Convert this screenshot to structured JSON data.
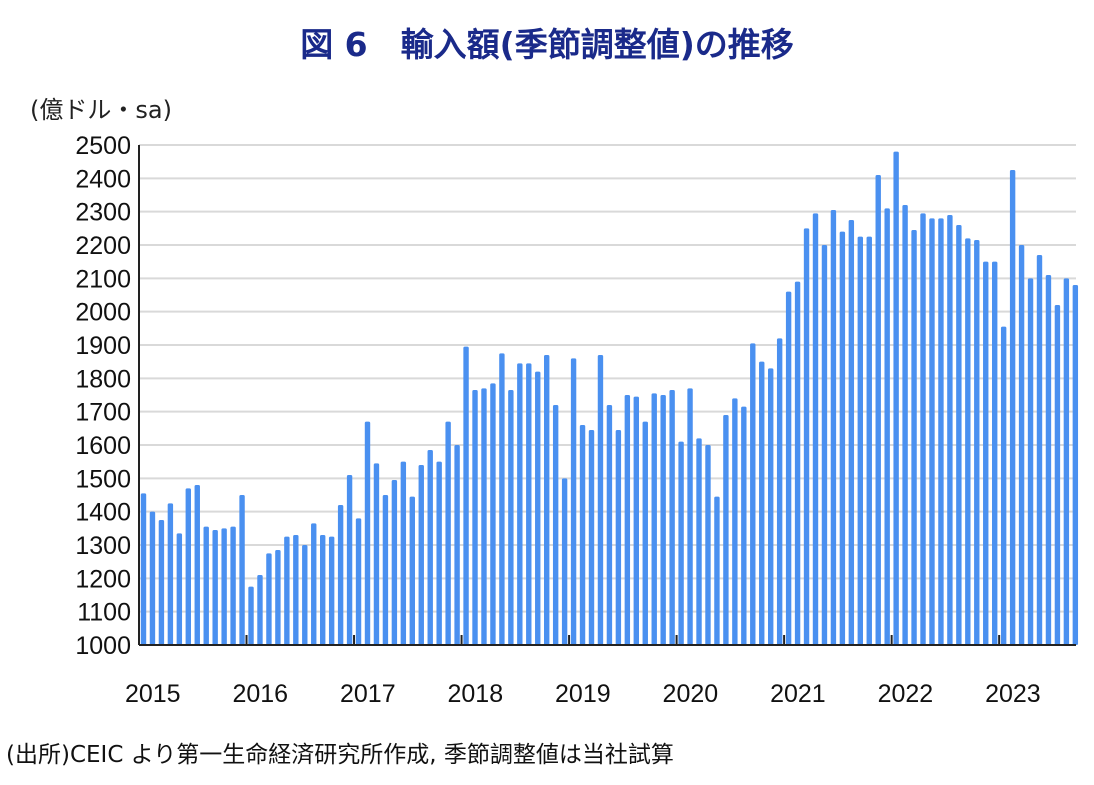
{
  "chart_data": {
    "type": "bar",
    "title": "図 6　輸入額(季節調整値)の推移",
    "ylabel": "(億ドル・sa)",
    "xlabel": "",
    "ylim": [
      1000,
      2500
    ],
    "yticks": [
      1000,
      1100,
      1200,
      1300,
      1400,
      1500,
      1600,
      1700,
      1800,
      1900,
      2000,
      2100,
      2200,
      2300,
      2400,
      2500
    ],
    "x_tick_labels": [
      "2015",
      "2016",
      "2017",
      "2018",
      "2019",
      "2020",
      "2021",
      "2022",
      "2023"
    ],
    "x_start": "2015-01",
    "frequency": "monthly",
    "grid": true,
    "bar_color": "#4a90f0",
    "values": [
      1455,
      1400,
      1375,
      1425,
      1335,
      1470,
      1480,
      1355,
      1345,
      1350,
      1355,
      1450,
      1175,
      1210,
      1275,
      1285,
      1325,
      1330,
      1300,
      1365,
      1330,
      1325,
      1420,
      1510,
      1380,
      1670,
      1545,
      1450,
      1495,
      1550,
      1445,
      1540,
      1585,
      1550,
      1670,
      1600,
      1895,
      1765,
      1770,
      1785,
      1875,
      1765,
      1845,
      1845,
      1820,
      1870,
      1720,
      1500,
      1860,
      1660,
      1645,
      1870,
      1720,
      1645,
      1750,
      1745,
      1670,
      1755,
      1750,
      1765,
      1610,
      1770,
      1620,
      1600,
      1445,
      1690,
      1740,
      1715,
      1905,
      1850,
      1830,
      1920,
      2060,
      2090,
      2250,
      2295,
      2200,
      2305,
      2240,
      2275,
      2225,
      2225,
      2410,
      2310,
      2480,
      2320,
      2245,
      2295,
      2280,
      2280,
      2290,
      2260,
      2220,
      2215,
      2150,
      2150,
      1955,
      2425,
      2200,
      2100,
      2170,
      2110,
      2020,
      2100,
      2080
    ],
    "source": "(出所)CEIC より第一生命経済研究所作成, 季節調整値は当社試算"
  }
}
